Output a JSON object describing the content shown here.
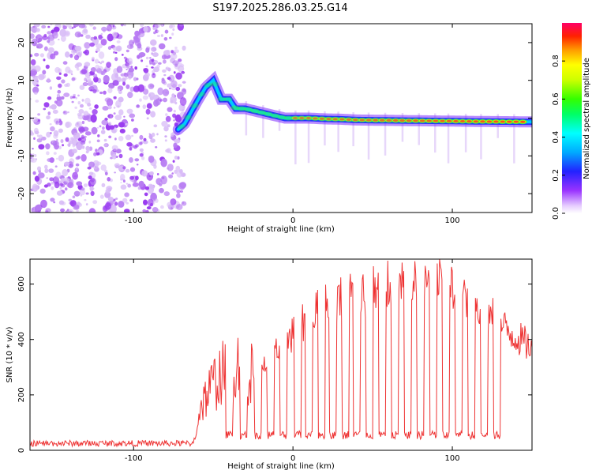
{
  "chart_data": [
    {
      "type": "heatmap",
      "title": "S197.2025.286.03.25.G14",
      "xlabel": "Height of straight line (km)",
      "ylabel": "Frequency (Hz)",
      "xlim": [
        -165,
        150
      ],
      "ylim": [
        -25,
        25
      ],
      "xticks": [
        -100,
        0,
        100
      ],
      "yticks": [
        -20,
        -10,
        0,
        10,
        20
      ],
      "noise_region_x": [
        -165,
        -68
      ],
      "signal_track": {
        "x": [
          -72,
          -68,
          -64,
          -60,
          -55,
          -50,
          -45,
          -40,
          -36,
          -30,
          -25,
          -20,
          -15,
          -10,
          -5,
          0,
          10,
          20,
          30,
          40,
          60,
          80,
          100,
          120,
          150
        ],
        "y": [
          -3,
          -1.5,
          1.5,
          4.5,
          8,
          10,
          5,
          5,
          2.5,
          2.5,
          2,
          1.5,
          1,
          0.5,
          0,
          0,
          0,
          -0.2,
          -0.3,
          -0.5,
          -0.6,
          -0.7,
          -0.8,
          -0.9,
          -1
        ]
      },
      "colorbar": {
        "label": "Normalized spectral amplitude",
        "ticks": [
          "0.0",
          "0.2",
          "0.4",
          "0.6",
          "0.8"
        ],
        "range": [
          0,
          1
        ]
      }
    },
    {
      "type": "line",
      "xlabel": "Height of straight line (km)",
      "ylabel": "SNR (10 * v/v)",
      "xlim": [
        -165,
        150
      ],
      "ylim": [
        0,
        690
      ],
      "xticks": [
        -100,
        0,
        100
      ],
      "yticks": [
        0,
        200,
        400,
        600
      ],
      "line_color": "#ee3333",
      "envelope": {
        "x": [
          -165,
          -100,
          -62,
          -58,
          -54,
          -50,
          -46,
          -42,
          -38,
          -34,
          -30,
          -25,
          -20,
          -15,
          -10,
          -5,
          0,
          5,
          10,
          15,
          20,
          25,
          30,
          35,
          40,
          45,
          50,
          55,
          60,
          65,
          70,
          75,
          80,
          85,
          90,
          95,
          100,
          105,
          110,
          115,
          120,
          125,
          130,
          135,
          140,
          145,
          150
        ],
        "y": [
          20,
          25,
          35,
          160,
          200,
          240,
          270,
          280,
          300,
          320,
          300,
          260,
          300,
          330,
          360,
          380,
          420,
          460,
          480,
          500,
          520,
          530,
          560,
          560,
          560,
          570,
          580,
          590,
          590,
          580,
          590,
          600,
          590,
          600,
          620,
          590,
          580,
          580,
          560,
          520,
          500,
          480,
          450,
          430,
          410,
          390,
          370
        ]
      },
      "dropouts_x": [
        -40,
        -31,
        -22,
        -14,
        -6,
        3,
        10,
        18,
        25,
        33,
        40,
        48,
        56,
        64,
        72,
        80,
        88,
        96,
        104,
        112,
        120,
        128
      ],
      "dropout_level": 40
    }
  ]
}
